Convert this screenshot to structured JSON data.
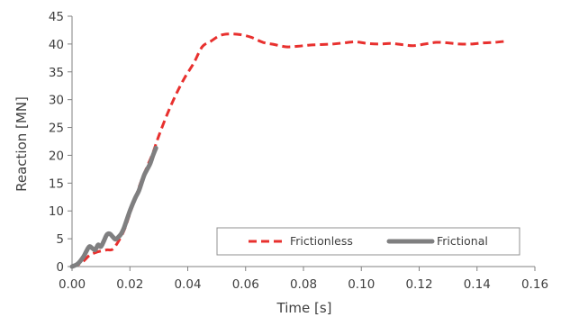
{
  "chart_data": {
    "type": "line",
    "title": "",
    "xlabel": "Time [s]",
    "ylabel": "Reaction [MN]",
    "xlim": [
      0,
      0.16
    ],
    "ylim": [
      0,
      45
    ],
    "xticks": [
      0,
      0.02,
      0.04,
      0.06,
      0.08,
      0.1,
      0.12,
      0.14,
      0.16
    ],
    "xtick_labels": [
      "0.00",
      "0.02",
      "0.04",
      "0.06",
      "0.08",
      "0.10",
      "0.12",
      "0.14",
      "0.16"
    ],
    "yticks": [
      0,
      5,
      10,
      15,
      20,
      25,
      30,
      35,
      40,
      45
    ],
    "ytick_labels": [
      "0",
      "5",
      "10",
      "15",
      "20",
      "25",
      "30",
      "35",
      "40",
      "45"
    ],
    "grid": false,
    "legend_position": "bottom-right",
    "series": [
      {
        "name": "Frictionless",
        "color": "#e8302e",
        "style": "dashed",
        "points": [
          [
            0.0,
            0.0
          ],
          [
            0.002,
            0.3
          ],
          [
            0.004,
            1.0
          ],
          [
            0.006,
            2.0
          ],
          [
            0.008,
            2.5
          ],
          [
            0.01,
            2.8
          ],
          [
            0.012,
            3.0
          ],
          [
            0.014,
            3.1
          ],
          [
            0.016,
            4.5
          ],
          [
            0.018,
            6.5
          ],
          [
            0.02,
            9.5
          ],
          [
            0.022,
            12.5
          ],
          [
            0.024,
            15.5
          ],
          [
            0.026,
            18.0
          ],
          [
            0.028,
            20.5
          ],
          [
            0.03,
            23.5
          ],
          [
            0.033,
            27.5
          ],
          [
            0.036,
            31.0
          ],
          [
            0.039,
            34.0
          ],
          [
            0.042,
            36.5
          ],
          [
            0.045,
            39.5
          ],
          [
            0.048,
            40.5
          ],
          [
            0.051,
            41.5
          ],
          [
            0.054,
            41.8
          ],
          [
            0.058,
            41.7
          ],
          [
            0.062,
            41.2
          ],
          [
            0.066,
            40.3
          ],
          [
            0.07,
            39.9
          ],
          [
            0.074,
            39.5
          ],
          [
            0.078,
            39.6
          ],
          [
            0.082,
            39.8
          ],
          [
            0.086,
            39.9
          ],
          [
            0.09,
            40.0
          ],
          [
            0.094,
            40.2
          ],
          [
            0.098,
            40.4
          ],
          [
            0.102,
            40.1
          ],
          [
            0.106,
            40.0
          ],
          [
            0.11,
            40.1
          ],
          [
            0.114,
            39.9
          ],
          [
            0.118,
            39.7
          ],
          [
            0.122,
            40.0
          ],
          [
            0.126,
            40.3
          ],
          [
            0.13,
            40.2
          ],
          [
            0.134,
            40.0
          ],
          [
            0.138,
            40.0
          ],
          [
            0.142,
            40.2
          ],
          [
            0.146,
            40.3
          ],
          [
            0.15,
            40.5
          ]
        ]
      },
      {
        "name": "Frictional",
        "color": "#7f7f80",
        "style": "solid",
        "points": [
          [
            0.0,
            0.0
          ],
          [
            0.002,
            0.5
          ],
          [
            0.004,
            1.8
          ],
          [
            0.005,
            2.8
          ],
          [
            0.006,
            3.6
          ],
          [
            0.007,
            3.3
          ],
          [
            0.008,
            3.0
          ],
          [
            0.009,
            3.9
          ],
          [
            0.01,
            3.6
          ],
          [
            0.011,
            4.6
          ],
          [
            0.012,
            5.7
          ],
          [
            0.013,
            5.9
          ],
          [
            0.014,
            5.4
          ],
          [
            0.015,
            4.9
          ],
          [
            0.016,
            5.3
          ],
          [
            0.017,
            5.9
          ],
          [
            0.018,
            7.0
          ],
          [
            0.019,
            8.5
          ],
          [
            0.02,
            10.0
          ],
          [
            0.021,
            11.3
          ],
          [
            0.022,
            12.5
          ],
          [
            0.023,
            13.5
          ],
          [
            0.024,
            15.0
          ],
          [
            0.025,
            16.5
          ],
          [
            0.026,
            17.5
          ],
          [
            0.027,
            18.5
          ],
          [
            0.028,
            20.0
          ],
          [
            0.029,
            21.3
          ]
        ]
      }
    ]
  }
}
